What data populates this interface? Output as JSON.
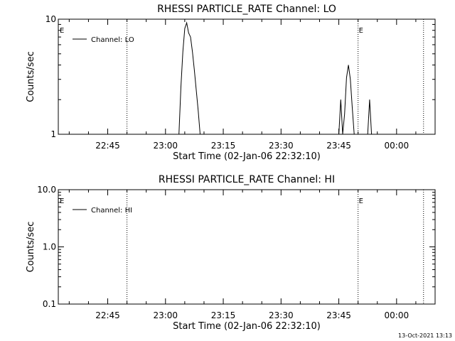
{
  "footer_timestamp": "13-Oct-2021 13:13",
  "chart_data": [
    {
      "type": "line",
      "title": "RHESSI PARTICLE_RATE Channel: LO",
      "xlabel": "Start Time (02-Jan-06 22:32:10)",
      "ylabel": "Counts/sec",
      "y_scale": "log",
      "ylim": [
        1,
        10
      ],
      "y_ticks": [
        {
          "value": 1,
          "label": "1"
        },
        {
          "value": 10,
          "label": "10"
        }
      ],
      "xlim": [
        "22:32:10",
        "00:10:00"
      ],
      "x_ticks": [
        {
          "value": "22:45",
          "label": "22:45"
        },
        {
          "value": "23:00",
          "label": "23:00"
        },
        {
          "value": "23:15",
          "label": "23:15"
        },
        {
          "value": "23:30",
          "label": "23:30"
        },
        {
          "value": "23:45",
          "label": "23:45"
        },
        {
          "value": "00:00",
          "label": "00:00"
        }
      ],
      "event_lines": [
        {
          "time": "22:50:00",
          "label": ""
        },
        {
          "time": "23:50:00",
          "label": "E"
        },
        {
          "time": "00:07:00",
          "label": ""
        }
      ],
      "start_marker": "E",
      "legend": {
        "position": "top-left",
        "entries": [
          "Channel: LO"
        ]
      },
      "series": [
        {
          "name": "Channel: LO",
          "x": [
            "23:03:30",
            "23:04:00",
            "23:04:30",
            "23:05:00",
            "23:05:30",
            "23:06:00",
            "23:06:30",
            "23:07:00",
            "23:07:30",
            "23:08:00",
            "23:08:30",
            "23:09:00",
            "23:09:30",
            "23:10:00",
            "23:10:30",
            "23:45:00",
            "23:45:30",
            "23:46:00",
            "23:46:30",
            "23:47:00",
            "23:47:30",
            "23:48:00",
            "23:48:30",
            "23:49:00",
            "23:49:30",
            "23:52:30",
            "23:53:00",
            "23:53:30"
          ],
          "y": [
            1,
            2.6,
            5.2,
            8.3,
            9.3,
            7.6,
            7.0,
            5.2,
            3.6,
            2.4,
            1.6,
            1.0,
            1,
            1,
            1,
            1,
            2.0,
            1,
            1.5,
            3.1,
            4.0,
            3.0,
            1.7,
            1.0,
            1,
            1,
            2.0,
            1
          ]
        }
      ]
    },
    {
      "type": "line",
      "title": "RHESSI PARTICLE_RATE Channel: HI",
      "xlabel": "Start Time (02-Jan-06 22:32:10)",
      "ylabel": "Counts/sec",
      "y_scale": "log",
      "ylim": [
        0.1,
        10
      ],
      "y_ticks": [
        {
          "value": 0.1,
          "label": "0.1"
        },
        {
          "value": 1,
          "label": "1.0"
        },
        {
          "value": 10,
          "label": "10.0"
        }
      ],
      "xlim": [
        "22:32:10",
        "00:10:00"
      ],
      "x_ticks": [
        {
          "value": "22:45",
          "label": "22:45"
        },
        {
          "value": "23:00",
          "label": "23:00"
        },
        {
          "value": "23:15",
          "label": "23:15"
        },
        {
          "value": "23:30",
          "label": "23:30"
        },
        {
          "value": "23:45",
          "label": "23:45"
        },
        {
          "value": "00:00",
          "label": "00:00"
        }
      ],
      "event_lines": [
        {
          "time": "22:50:00",
          "label": ""
        },
        {
          "time": "23:50:00",
          "label": "E"
        },
        {
          "time": "00:07:00",
          "label": ""
        }
      ],
      "start_marker": "E",
      "legend": {
        "position": "top-left",
        "entries": [
          "Channel: HI"
        ]
      },
      "series": [
        {
          "name": "Channel: HI",
          "x": [],
          "y": []
        }
      ]
    }
  ]
}
